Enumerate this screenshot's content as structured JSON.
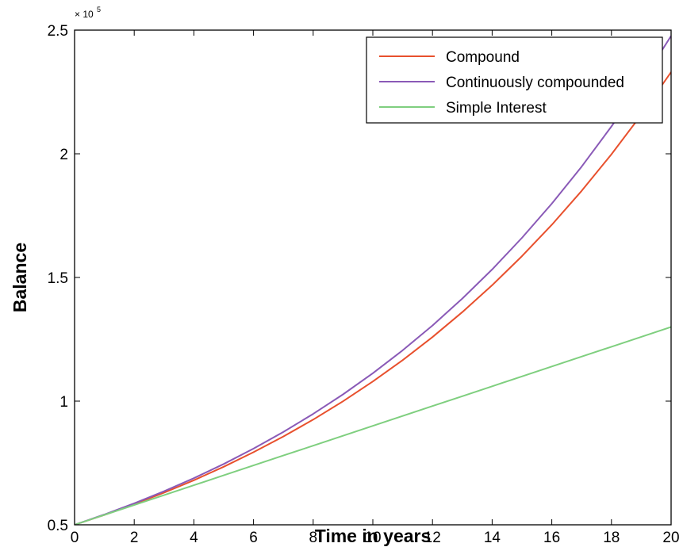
{
  "chart_data": {
    "type": "line",
    "xlabel": "Time in years",
    "ylabel": "Balance",
    "xlim": [
      0,
      20
    ],
    "ylim": [
      50000,
      250000
    ],
    "x_ticks": [
      0,
      2,
      4,
      6,
      8,
      10,
      12,
      14,
      16,
      18,
      20
    ],
    "x_tick_labels": [
      "0",
      "2",
      "4",
      "6",
      "8",
      "10",
      "12",
      "14",
      "16",
      "18",
      "20"
    ],
    "y_ticks": [
      50000,
      100000,
      150000,
      200000,
      250000
    ],
    "y_tick_labels": [
      "0.5",
      "1",
      "1.5",
      "2",
      "2.5"
    ],
    "y_multiplier_base": "× 10",
    "y_multiplier_exp": "5",
    "grid": false,
    "legend_position": "top-right",
    "x": [
      0,
      1,
      2,
      3,
      4,
      5,
      6,
      7,
      8,
      9,
      10,
      11,
      12,
      13,
      14,
      15,
      16,
      17,
      18,
      19,
      20
    ],
    "series": [
      {
        "name": "Compound",
        "color": "#e8502d",
        "values": [
          50000,
          54000,
          58320,
          62986,
          68024,
          73466,
          79344,
          85691,
          92546,
          99950,
          107946,
          116582,
          125909,
          135981,
          146860,
          158608,
          171297,
          185001,
          199801,
          215785,
          233048
        ]
      },
      {
        "name": "Continuously compounded",
        "color": "#8a5ab7",
        "values": [
          50000,
          54164,
          58676,
          63562,
          68856,
          74591,
          80804,
          87534,
          94825,
          102723,
          111277,
          120546,
          130587,
          141464,
          153247,
          166010,
          179838,
          194817,
          211044,
          228622,
          247665
        ]
      },
      {
        "name": "Simple Interest",
        "color": "#7fcf7f",
        "values": [
          50000,
          54000,
          58000,
          62000,
          66000,
          70000,
          74000,
          78000,
          82000,
          86000,
          90000,
          94000,
          98000,
          102000,
          106000,
          110000,
          114000,
          118000,
          122000,
          126000,
          130000
        ]
      }
    ]
  }
}
